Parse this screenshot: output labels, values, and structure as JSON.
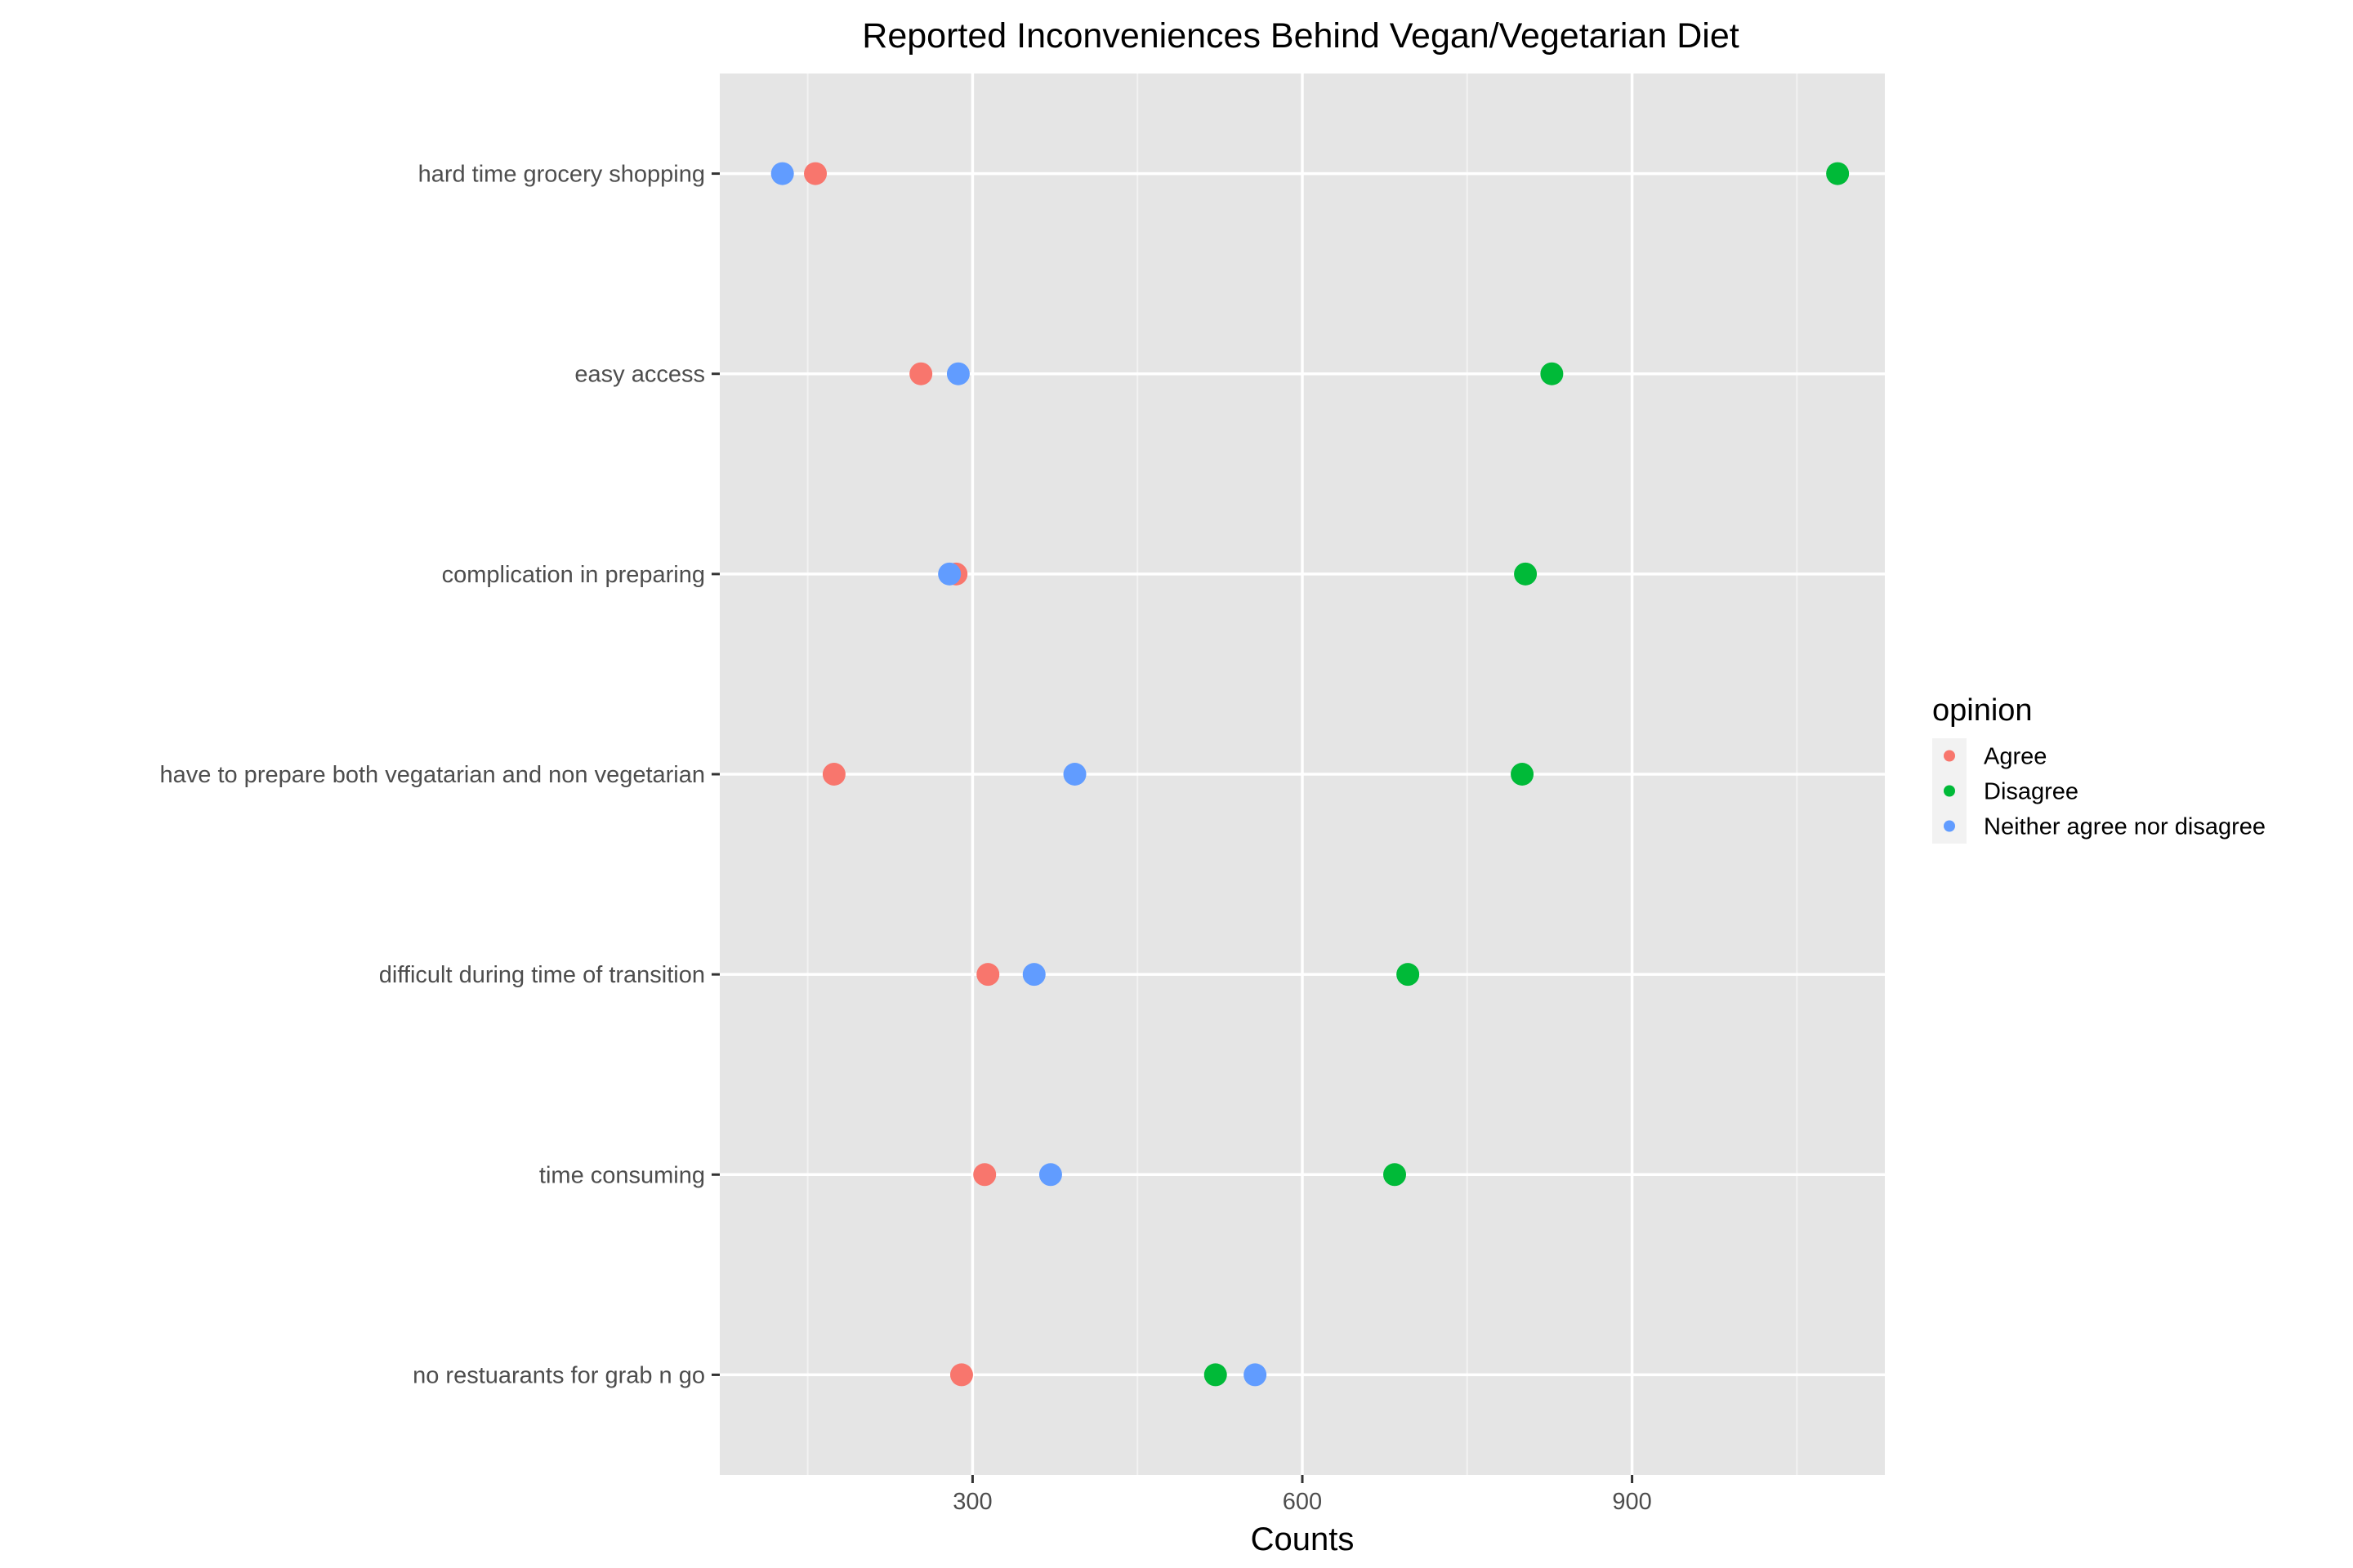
{
  "chart_data": {
    "type": "scatter",
    "title": "Reported Inconveniences Behind Vegan/Vegetarian Diet",
    "xlabel": "Counts",
    "ylabel": "",
    "xlim": [
      70,
      1130
    ],
    "x_ticks": [
      300,
      600,
      900
    ],
    "x_ticks_labels": [
      "300",
      "600",
      "900"
    ],
    "x_minor_ticks": [
      150,
      450,
      750,
      1050
    ],
    "grid": true,
    "categories": [
      "hard time grocery shopping",
      "easy access",
      "complication in preparing",
      "have to prepare both vegatarian and non vegetarian",
      "difficult during time of transition",
      "time consuming",
      "no restuarants for grab n go"
    ],
    "series": [
      {
        "name": "Agree",
        "color": "#F8766D",
        "values": [
          157,
          253,
          285,
          174,
          314,
          311,
          290
        ]
      },
      {
        "name": "Disagree",
        "color": "#00BA38",
        "values": [
          1087,
          827,
          803,
          800,
          696,
          684,
          521
        ]
      },
      {
        "name": "Neither agree nor disagree",
        "color": "#619CFF",
        "values": [
          127,
          287,
          279,
          393,
          356,
          371,
          557
        ]
      }
    ],
    "legend": {
      "title": "opinion",
      "placement": "right"
    }
  }
}
